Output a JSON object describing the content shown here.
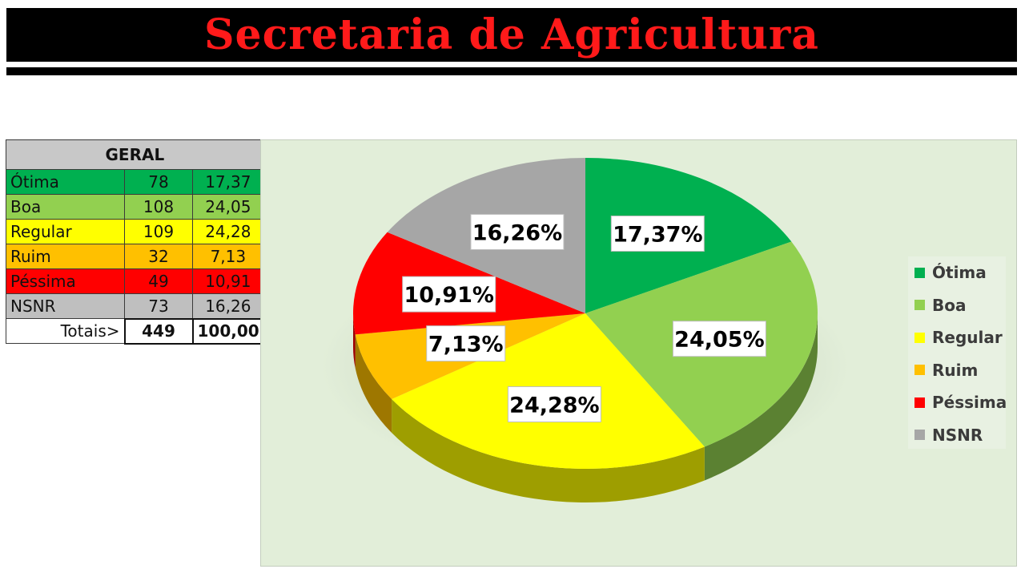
{
  "header": {
    "title": "Secretaria de Agricultura"
  },
  "table": {
    "title": "GERAL",
    "rows": [
      {
        "label": "Ótima",
        "count": "78",
        "pct": "17,37",
        "color": "#00b050"
      },
      {
        "label": "Boa",
        "count": "108",
        "pct": "24,05",
        "color": "#92d050"
      },
      {
        "label": "Regular",
        "count": "109",
        "pct": "24,28",
        "color": "#ffff00"
      },
      {
        "label": "Ruim",
        "count": "32",
        "pct": "7,13",
        "color": "#ffc000"
      },
      {
        "label": "Péssima",
        "count": "49",
        "pct": "10,91",
        "color": "#ff0000"
      },
      {
        "label": "NSNR",
        "count": "73",
        "pct": "16,26",
        "color": "#bfbfbf"
      }
    ],
    "total_label": "Totais>",
    "total_count": "449",
    "total_pct": "100,00"
  },
  "chart_data": {
    "type": "pie",
    "categories": [
      "Ótima",
      "Boa",
      "Regular",
      "Ruim",
      "Péssima",
      "NSNR"
    ],
    "values": [
      17.37,
      24.05,
      24.28,
      7.13,
      10.91,
      16.26
    ],
    "data_labels": [
      "17,37%",
      "24,05%",
      "24,28%",
      "7,13%",
      "10,91%",
      "16,26%"
    ],
    "colors": [
      "#00b050",
      "#92d050",
      "#ffff00",
      "#ffc000",
      "#ff0000",
      "#a6a6a6"
    ],
    "legend_position": "right",
    "style": "3d"
  }
}
